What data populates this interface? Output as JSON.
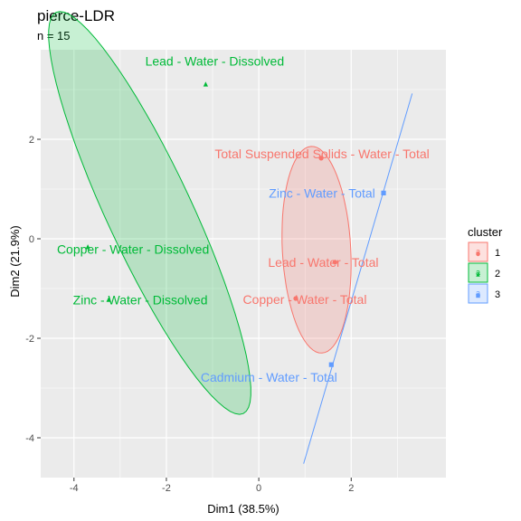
{
  "chart_data": {
    "type": "scatter",
    "title": "pierce-LDR",
    "subtitle": "n = 15",
    "xlabel": "Dim1 (38.5%)",
    "ylabel": "Dim2 (21.9%)",
    "xlim": [
      -4.72,
      4.05
    ],
    "ylim": [
      -4.8,
      3.8
    ],
    "xticks": [
      -4,
      -2,
      0,
      2
    ],
    "yticks": [
      -4,
      -2,
      0,
      2
    ],
    "xtick_labels": [
      "-4",
      "-2",
      "0",
      "2"
    ],
    "ytick_labels": [
      "-4",
      "-2",
      "0",
      "2"
    ],
    "grid": true,
    "legend_position": "right",
    "legend_title": "cluster",
    "clusters": [
      {
        "name": "1",
        "color": "#F8766D",
        "marker": "circle"
      },
      {
        "name": "2",
        "color": "#00BA38",
        "marker": "triangle"
      },
      {
        "name": "3",
        "color": "#619CFF",
        "marker": "square"
      }
    ],
    "points": [
      {
        "label": "Lead - Water - Dissolved",
        "cluster": "2",
        "x": -1.15,
        "y": 3.1
      },
      {
        "label": "Copper - Water - Dissolved",
        "cluster": "2",
        "x": -3.7,
        "y": -0.17
      },
      {
        "label": "Zinc - Water - Dissolved",
        "cluster": "2",
        "x": -3.25,
        "y": -1.23
      },
      {
        "label": "Total Suspended Solids - Water - Total",
        "cluster": "1",
        "x": 1.35,
        "y": 1.62
      },
      {
        "label": "Lead - Water - Total",
        "cluster": "1",
        "x": 1.65,
        "y": -0.47
      },
      {
        "label": "Copper - Water - Total",
        "cluster": "1",
        "x": 0.8,
        "y": -1.2
      },
      {
        "label": "Zinc - Water - Total",
        "cluster": "3",
        "x": 2.7,
        "y": 0.92
      },
      {
        "label": "Cadmium - Water - Total",
        "cluster": "3",
        "x": 1.57,
        "y": -2.53
      }
    ],
    "hulls": [
      {
        "cluster": "1",
        "shape": "ellipse",
        "center": [
          1.25,
          -0.22
        ],
        "axes": [
          0.74,
          2.08
        ],
        "angle_deg": 3
      },
      {
        "cluster": "2",
        "shape": "ellipse",
        "center": [
          -2.36,
          0.52
        ],
        "axes": [
          0.92,
          4.45
        ],
        "angle_deg": 25
      },
      {
        "cluster": "3",
        "shape": "line",
        "from": [
          0.97,
          -4.52
        ],
        "to": [
          3.32,
          2.92
        ]
      }
    ]
  }
}
